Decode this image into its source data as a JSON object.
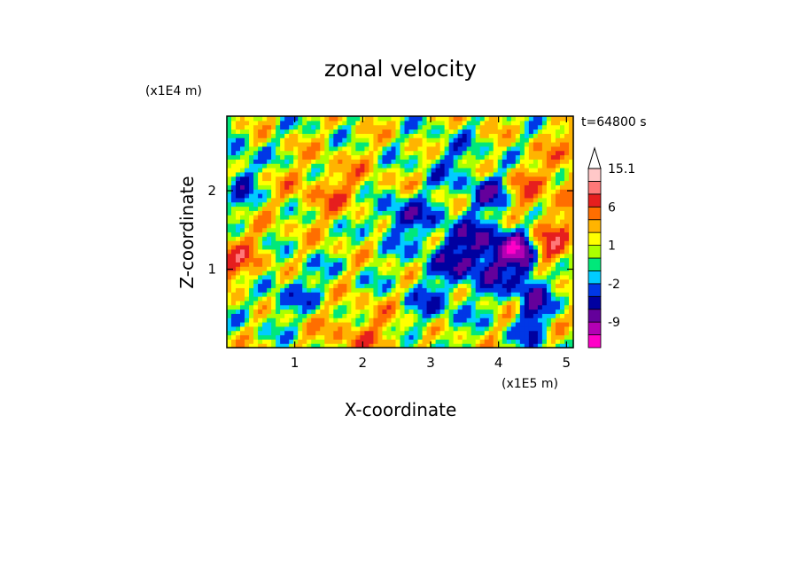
{
  "chart_data": {
    "type": "heatmap",
    "title": "zonal velocity",
    "xlabel": "X-coordinate",
    "ylabel": "Z-coordinate",
    "x_scale_label": "(x1E5 m)",
    "y_scale_label": "(x1E4 m)",
    "time_label": "t=64800 s",
    "xlim": [
      0,
      5.1
    ],
    "ylim": [
      0,
      2.95
    ],
    "x_ticks": [
      {
        "value": 1,
        "label": "1"
      },
      {
        "value": 2,
        "label": "2"
      },
      {
        "value": 3,
        "label": "3"
      },
      {
        "value": 4,
        "label": "4"
      },
      {
        "value": 5,
        "label": "5"
      }
    ],
    "y_ticks": [
      {
        "value": 1,
        "label": "1"
      },
      {
        "value": 2,
        "label": "2"
      }
    ],
    "colorbar": {
      "levels": [
        {
          "min": -15,
          "max": -12,
          "color": "#ff00c8"
        },
        {
          "min": -12,
          "max": -9,
          "color": "#b400b4"
        },
        {
          "min": -9,
          "max": -6,
          "color": "#64009b"
        },
        {
          "min": -6,
          "max": -4,
          "color": "#0000a0"
        },
        {
          "min": -4,
          "max": -2,
          "color": "#0037e6"
        },
        {
          "min": -2,
          "max": -1,
          "color": "#00ccff"
        },
        {
          "min": -1,
          "max": 0,
          "color": "#00e87a"
        },
        {
          "min": 0,
          "max": 1,
          "color": "#aaff00"
        },
        {
          "min": 1,
          "max": 2,
          "color": "#ffff00"
        },
        {
          "min": 2,
          "max": 4,
          "color": "#ffb400"
        },
        {
          "min": 4,
          "max": 6,
          "color": "#ff6e00"
        },
        {
          "min": 6,
          "max": 9,
          "color": "#e61e1e"
        },
        {
          "min": 9,
          "max": 12,
          "color": "#ff7878"
        },
        {
          "min": 12,
          "max": 15.1,
          "color": "#ffc8c8"
        }
      ],
      "labels": [
        {
          "value": -9,
          "label": "-9"
        },
        {
          "value": -2,
          "label": "-2"
        },
        {
          "value": 1,
          "label": "1"
        },
        {
          "value": 6,
          "label": "6"
        },
        {
          "value": 15.1,
          "label": "15.1"
        }
      ],
      "extend": "max"
    },
    "features": [
      {
        "x": 3.8,
        "z": 1.2,
        "amp": -7.5,
        "sx": 0.55,
        "sz": 0.3
      },
      {
        "x": 4.0,
        "z": 2.0,
        "amp": -6,
        "sx": 0.3,
        "sz": 0.15
      },
      {
        "x": 2.55,
        "z": 1.7,
        "amp": -5,
        "sx": 0.35,
        "sz": 0.18
      },
      {
        "x": 4.3,
        "z": 1.25,
        "amp": -7,
        "sx": 0.15,
        "sz": 0.15
      },
      {
        "x": 4.7,
        "z": 1.3,
        "amp": 7,
        "sx": 0.25,
        "sz": 0.25
      },
      {
        "x": 4.3,
        "z": 2.0,
        "amp": 6,
        "sx": 0.2,
        "sz": 0.2
      },
      {
        "x": 0.2,
        "z": 1.1,
        "amp": 4.5,
        "sx": 0.3,
        "sz": 0.25
      },
      {
        "x": 0.2,
        "z": 2.2,
        "amp": -4,
        "sx": 0.15,
        "sz": 0.3
      },
      {
        "x": 2.0,
        "z": 0.2,
        "amp": 3,
        "sx": 0.5,
        "sz": 0.25
      },
      {
        "x": 3.0,
        "z": 0.5,
        "amp": -3,
        "sx": 0.3,
        "sz": 0.2
      },
      {
        "x": 4.5,
        "z": 0.6,
        "amp": -6,
        "sx": 0.15,
        "sz": 0.4
      },
      {
        "x": 1.6,
        "z": 2.0,
        "amp": 3,
        "sx": 0.5,
        "sz": 0.3
      },
      {
        "x": 3.3,
        "z": 2.4,
        "amp": -2.5,
        "sx": 0.3,
        "sz": 0.2
      },
      {
        "x": 0.9,
        "z": 0.7,
        "amp": -2.5,
        "sx": 0.4,
        "sz": 0.25
      },
      {
        "x": 5.0,
        "z": 2.2,
        "amp": 3,
        "sx": 0.3,
        "sz": 0.4
      }
    ]
  }
}
